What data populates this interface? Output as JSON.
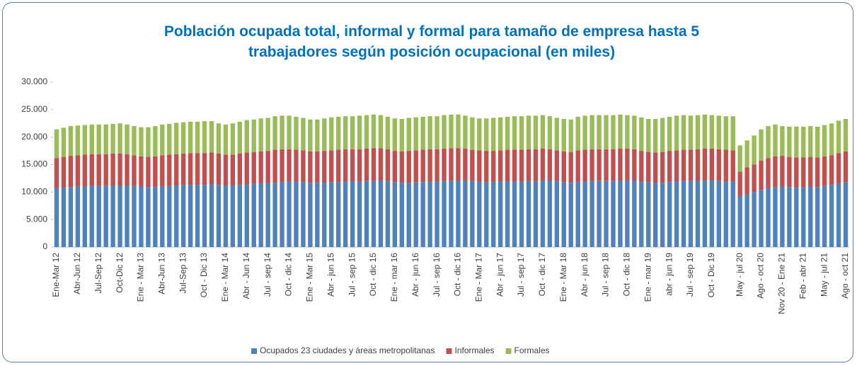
{
  "chart_data": {
    "type": "stacked_bar",
    "title": "Población ocupada total, informal y formal para tamaño de empresa hasta 5 trabajadores según posición ocupacional (en miles)",
    "categories": [
      "Ene-Mar 12",
      null,
      null,
      "Abr-Jun 12",
      null,
      null,
      "Jul-Sep 12",
      null,
      null,
      "Oct-Dic 12",
      null,
      null,
      "Ene - Mar 13",
      null,
      null,
      "Abr-Jun 13",
      null,
      null,
      "Jul-Sep 13",
      null,
      null,
      "Oct - Dic 13",
      null,
      null,
      "Ene - Mar 14",
      null,
      null,
      "Abr - Jun 14",
      null,
      null,
      "Jul - sep 14",
      null,
      null,
      "Oct - dic 14",
      null,
      null,
      "Ene - Mar 15",
      null,
      null,
      "Abr - jun 15",
      null,
      null,
      "Jul - sep 15",
      null,
      null,
      "Oct - dic 15",
      null,
      null,
      "Ene - mar 16",
      null,
      null,
      "Abr - jun 16",
      null,
      null,
      "Jul - sep 16",
      null,
      null,
      "Oct - dic 16",
      null,
      null,
      "Ene - Mar 17",
      null,
      null,
      "Abr - jun 17",
      null,
      null,
      "Jul - sep 17",
      null,
      null,
      "Oct - dic 17",
      null,
      null,
      "Ene - Mar 18",
      null,
      null,
      "Abr - jun 18",
      null,
      null,
      "Jul - sep 18",
      null,
      null,
      "Oct - dic 18",
      null,
      null,
      "Ene - mar 19",
      null,
      null,
      "abr - jun 19",
      null,
      null,
      "Jul - sep 19",
      null,
      null,
      "Oct - Dic 19",
      null,
      null,
      null,
      "May - jul 20",
      null,
      null,
      "Ago - oct 20",
      null,
      null,
      "Nov 20 - Ene 21",
      null,
      null,
      "Feb - abr 21",
      null,
      null,
      "May - jul 21",
      null,
      null,
      "Ago - oct 21"
    ],
    "series": [
      {
        "name": "Ocupados 23 ciudades y áreas metropolitanas",
        "color": "#4f81bd",
        "values": [
          10700,
          10800,
          10900,
          11000,
          11000,
          11100,
          11100,
          11100,
          11200,
          11200,
          11200,
          11100,
          11000,
          10900,
          10900,
          11000,
          11100,
          11200,
          11300,
          11300,
          11300,
          11300,
          11400,
          11300,
          11200,
          11200,
          11300,
          11400,
          11500,
          11600,
          11600,
          11700,
          11800,
          11900,
          11900,
          11800,
          11700,
          11700,
          11700,
          11800,
          11800,
          11900,
          11900,
          11900,
          12000,
          12000,
          12100,
          12000,
          11800,
          11700,
          11700,
          11800,
          11800,
          11900,
          11900,
          12000,
          12000,
          12100,
          12100,
          12000,
          11900,
          11800,
          11800,
          11900,
          11900,
          11900,
          11900,
          12000,
          12000,
          12100,
          12100,
          12000,
          11800,
          11700,
          11800,
          11900,
          12000,
          12000,
          12000,
          12000,
          12100,
          12100,
          12100,
          11900,
          11800,
          11700,
          11700,
          11800,
          11900,
          12000,
          12000,
          12100,
          12100,
          12100,
          12000,
          11900,
          11900,
          9200,
          9600,
          10000,
          10400,
          10700,
          10900,
          11000,
          10900,
          10800,
          10900,
          11000,
          10900,
          11100,
          11300,
          11600,
          11800
        ]
      },
      {
        "name": "Informales",
        "color": "#c0504d",
        "values": [
          5500,
          5600,
          5700,
          5700,
          5800,
          5800,
          5800,
          5800,
          5800,
          5800,
          5700,
          5600,
          5500,
          5500,
          5600,
          5700,
          5700,
          5700,
          5700,
          5800,
          5800,
          5800,
          5800,
          5700,
          5600,
          5600,
          5700,
          5800,
          5800,
          5800,
          5900,
          6000,
          6000,
          5900,
          5800,
          5800,
          5700,
          5700,
          5800,
          5800,
          5900,
          5900,
          5900,
          5900,
          5900,
          6000,
          5900,
          5800,
          5700,
          5700,
          5800,
          5800,
          5900,
          5900,
          5900,
          5900,
          6000,
          5900,
          5800,
          5700,
          5700,
          5700,
          5700,
          5700,
          5800,
          5800,
          5800,
          5800,
          5800,
          5800,
          5700,
          5600,
          5600,
          5600,
          5800,
          5800,
          5800,
          5800,
          5800,
          5800,
          5800,
          5800,
          5700,
          5600,
          5500,
          5500,
          5600,
          5700,
          5700,
          5700,
          5700,
          5700,
          5800,
          5800,
          5800,
          5800,
          5700,
          4500,
          4900,
          5000,
          5300,
          5500,
          5600,
          5600,
          5500,
          5500,
          5400,
          5400,
          5400,
          5400,
          5400,
          5500,
          5600
        ]
      },
      {
        "name": "Formales",
        "color": "#9bbb59",
        "values": [
          5200,
          5300,
          5400,
          5400,
          5400,
          5400,
          5400,
          5400,
          5400,
          5500,
          5400,
          5300,
          5300,
          5400,
          5500,
          5600,
          5600,
          5700,
          5700,
          5700,
          5700,
          5800,
          5700,
          5500,
          5500,
          5700,
          5800,
          5900,
          5900,
          6000,
          6000,
          6100,
          6100,
          6100,
          6000,
          5900,
          5800,
          5800,
          5900,
          6000,
          6000,
          6000,
          6000,
          6100,
          6100,
          6100,
          6000,
          5900,
          5900,
          5900,
          6000,
          6000,
          6000,
          6000,
          6000,
          6100,
          6100,
          6100,
          6000,
          5900,
          5800,
          5900,
          6000,
          6000,
          6000,
          6100,
          6100,
          6100,
          6100,
          6100,
          6000,
          5900,
          5900,
          5900,
          6100,
          6200,
          6200,
          6200,
          6200,
          6200,
          6200,
          6100,
          6100,
          6100,
          6000,
          6100,
          6200,
          6200,
          6300,
          6300,
          6200,
          6200,
          6200,
          6100,
          6100,
          6100,
          6200,
          4800,
          4900,
          5300,
          5700,
          5800,
          5800,
          5400,
          5500,
          5600,
          5600,
          5600,
          5600,
          5700,
          5800,
          5900,
          5900
        ]
      }
    ],
    "ylim": [
      0,
      30000
    ],
    "yticks": [
      0,
      {
        "value": 5000,
        "label": "5.000"
      },
      {
        "value": 10000,
        "label": "10.000"
      },
      {
        "value": 15000,
        "label": "15.000"
      },
      {
        "value": 20000,
        "label": "20.000"
      },
      {
        "value": 25000,
        "label": "25.000"
      },
      {
        "value": 30000,
        "label": "30.000"
      }
    ],
    "grid": false,
    "legend": "bottom"
  }
}
